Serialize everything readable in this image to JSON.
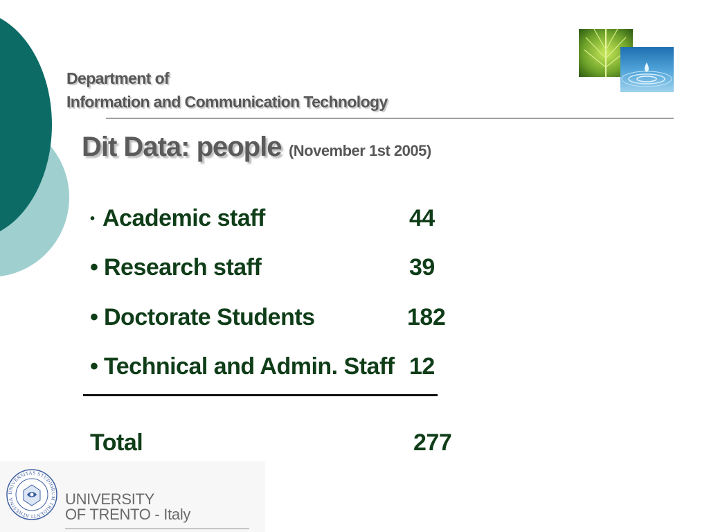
{
  "header": {
    "department_line1": "Department of",
    "department_line2": "Information and Communication Technology"
  },
  "title": {
    "main": "Dit Data: people",
    "date": "(November 1st 2005)"
  },
  "stats": [
    {
      "label": "Academic staff",
      "value": "44"
    },
    {
      "label": "Research staff",
      "value": "39"
    },
    {
      "label": "Doctorate Students",
      "value": "182"
    },
    {
      "label": "Technical and Admin. Staff",
      "value": "12"
    }
  ],
  "total": {
    "label": "Total",
    "value": "277"
  },
  "footer": {
    "seal_text": "UNIVERSITAS STUDIORUM TRIDENTI ATHESINA",
    "university_line1": "UNIVERSITY",
    "university_line2": "OF TRENTO - Italy"
  },
  "colors": {
    "accent_dark_teal": "#0d6b66",
    "accent_light_teal": "#9fcfcf",
    "text_green": "#0f3d18",
    "text_gray": "#575757"
  },
  "icons": {
    "leaf_photo": "leaf-photo",
    "water_photo": "water-drop-photo",
    "seal": "university-seal-icon"
  }
}
